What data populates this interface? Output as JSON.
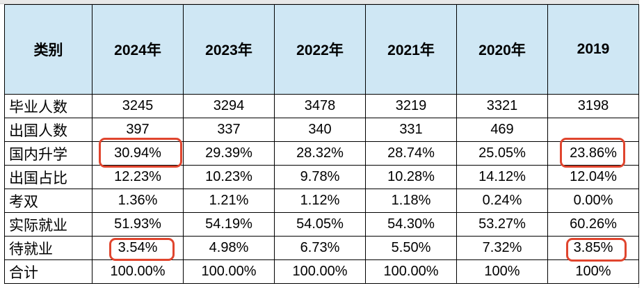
{
  "table": {
    "headers": [
      "类别",
      "2024年",
      "2023年",
      "2022年",
      "2021年",
      "2020年",
      "2019"
    ],
    "rows": [
      {
        "label": "毕业人数",
        "values": [
          "3245",
          "3294",
          "3478",
          "3219",
          "3321",
          "3198"
        ]
      },
      {
        "label": "出国人数",
        "values": [
          "397",
          "337",
          "340",
          "331",
          "469",
          ""
        ]
      },
      {
        "label": "国内升学",
        "values": [
          "30.94%",
          "29.39%",
          "28.32%",
          "28.74%",
          "25.05%",
          "23.86%"
        ]
      },
      {
        "label": "出国占比",
        "values": [
          "12.23%",
          "10.23%",
          "9.78%",
          "10.28%",
          "14.12%",
          "12.04%"
        ]
      },
      {
        "label": "考双",
        "values": [
          "1.36%",
          "1.21%",
          "1.12%",
          "1.18%",
          "0.24%",
          "0.00%"
        ]
      },
      {
        "label": "实际就业",
        "values": [
          "51.93%",
          "54.19%",
          "54.05%",
          "54.30%",
          "53.27%",
          "60.26%"
        ]
      },
      {
        "label": "待就业",
        "values": [
          "3.54%",
          "4.98%",
          "6.73%",
          "5.50%",
          "7.32%",
          "3.85%"
        ]
      },
      {
        "label": "合计",
        "values": [
          "100.00%",
          "100.00%",
          "100.00%",
          "100.00%",
          "100%",
          "100%"
        ]
      }
    ]
  },
  "colors": {
    "header_bg": "#cfe7f4",
    "highlight": "#e0452e",
    "border": "#000000"
  }
}
